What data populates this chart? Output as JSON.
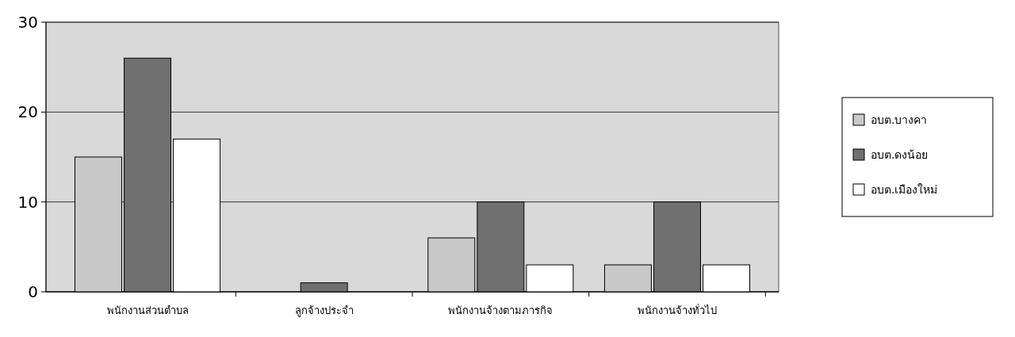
{
  "chart_data": {
    "type": "bar",
    "categories": [
      "พนักงานส่วนตำบล",
      "ลูกจ้างประจำ",
      "พนักงานจ้างตามภารกิจ",
      "พนักงานจ้างทั่วไป"
    ],
    "series": [
      {
        "name": "อบต.บางคา",
        "color": "#c8c8c8",
        "values": [
          15,
          0,
          6,
          3
        ]
      },
      {
        "name": "อบต.ดงน้อย",
        "color": "#707070",
        "values": [
          26,
          1,
          10,
          10
        ]
      },
      {
        "name": "อบต.เมืองใหม่",
        "color": "#ffffff",
        "values": [
          17,
          0,
          3,
          3
        ]
      }
    ],
    "ylim": [
      0,
      30
    ],
    "yticks": [
      0,
      10,
      20,
      30
    ],
    "grid": "y",
    "legend": "right"
  }
}
